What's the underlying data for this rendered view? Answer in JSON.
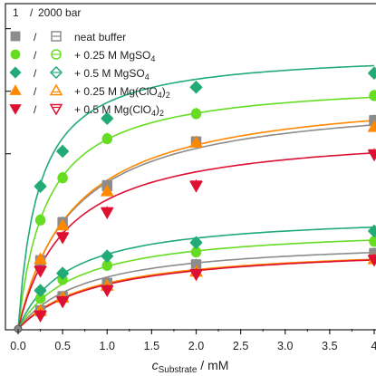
{
  "chart_data": {
    "type": "scatter",
    "xlabel": {
      "main": "c",
      "sub": "Substrate",
      "unit": " / mM"
    },
    "xlim": [
      0,
      4
    ],
    "ylim": [
      0,
      1.04
    ],
    "x_ticks": [
      "0.0",
      "0.5",
      "1.0",
      "1.5",
      "2.0",
      "2.5",
      "3.0",
      "3.5",
      "4"
    ],
    "legend": {
      "header": [
        "1",
        "/",
        "2000 bar"
      ],
      "placement": "top-left"
    },
    "x": [
      0,
      0.25,
      0.5,
      1,
      2,
      4
    ],
    "series": [
      {
        "name": "neat buffer",
        "color": "#8c8c8c",
        "marker": "square",
        "curve": {
          "vmax": 0.75,
          "km": 0.6
        },
        "pressure_1_bar": [
          0,
          0.22,
          0.342,
          0.46,
          0.6,
          0.668
        ],
        "pressure_2000_bar": [
          0,
          0.06,
          0.105,
          0.148,
          0.207,
          0.243
        ]
      },
      {
        "name": "+ 0.25 M MgSO",
        "sub": "4",
        "sup": "",
        "color": "#66dd22",
        "marker": "circle",
        "curve": {
          "vmax": 0.8,
          "km": 0.32
        },
        "pressure_1_bar": [
          0,
          0.35,
          0.485,
          0.61,
          0.69,
          0.748
        ],
        "pressure_2000_bar": [
          0,
          0.1,
          0.16,
          0.205,
          0.248,
          0.282
        ]
      },
      {
        "name": "+ 0.5 M MgSO",
        "sub": "4",
        "sup": "",
        "color": "#22aa77",
        "marker": "diamond",
        "curve": {
          "vmax": 0.89,
          "km": 0.23
        },
        "pressure_1_bar": [
          0,
          0.458,
          0.57,
          0.675,
          0.775,
          0.82
        ],
        "pressure_2000_bar": [
          0,
          0.125,
          0.18,
          0.235,
          0.278,
          0.315
        ]
      },
      {
        "name": "+ 0.25 M Mg(ClO",
        "sub": "4",
        "sup": ")2",
        "color": "#ff8800",
        "marker": "triangle-up",
        "curve": {
          "vmax": 0.77,
          "km": 0.62
        },
        "pressure_1_bar": [
          0,
          0.225,
          0.333,
          0.442,
          0.598,
          0.648
        ],
        "pressure_2000_bar": [
          0,
          0.06,
          0.102,
          0.14,
          0.185,
          0.225
        ]
      },
      {
        "name": "+ 0.5 M Mg(ClO",
        "sub": "4",
        "sup": ")2",
        "color": "#dd1133",
        "marker": "triangle-down",
        "curve": {
          "vmax": 0.64,
          "km": 0.55
        },
        "pressure_1_bar": [
          0,
          0.188,
          0.295,
          0.375,
          0.46,
          0.56
        ],
        "pressure_2000_bar": [
          0,
          0.045,
          0.09,
          0.126,
          0.177,
          0.223
        ]
      }
    ],
    "lower_curves": [
      {
        "color": "#8c8c8c",
        "vmax": 0.29,
        "km": 0.75
      },
      {
        "color": "#66dd22",
        "vmax": 0.33,
        "km": 0.65
      },
      {
        "color": "#22aa77",
        "vmax": 0.37,
        "km": 0.55
      },
      {
        "color": "#ff8800",
        "vmax": 0.27,
        "km": 0.85
      },
      {
        "color": "#dd1133",
        "vmax": 0.27,
        "km": 0.9
      }
    ],
    "grid": false
  }
}
